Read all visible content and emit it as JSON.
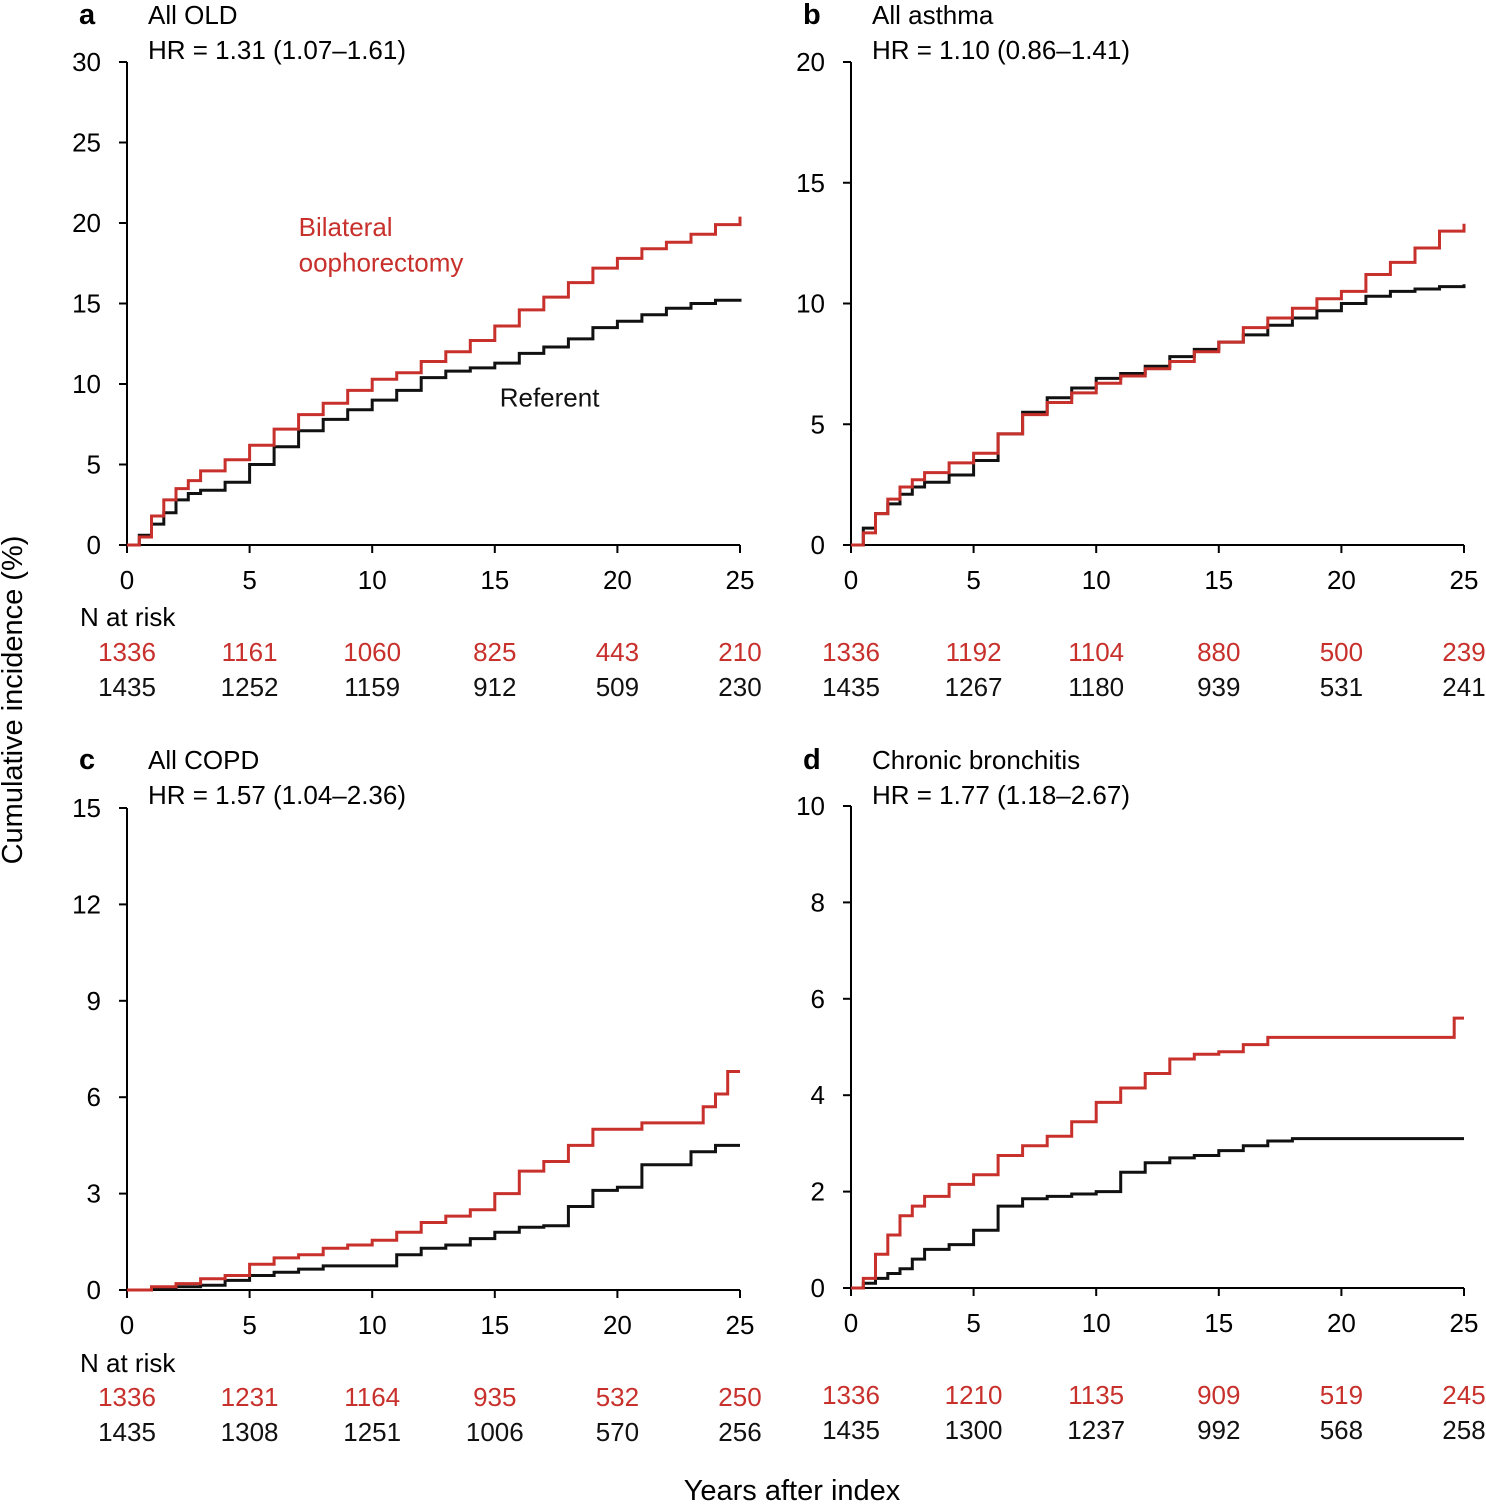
{
  "figure": {
    "ylabel": "Cumulative incidence (%)",
    "xlabel": "Years after index",
    "n_at_risk_label": "N at risk",
    "colors": {
      "oophorectomy": "#c8302c",
      "referent": "#111111",
      "axis": "#000000"
    }
  },
  "chart_data": [
    {
      "type": "line",
      "letter": "a",
      "title": "All OLD",
      "hr": "HR = 1.31 (1.07–1.61)",
      "xlim": [
        0,
        25
      ],
      "ylim": [
        0,
        30
      ],
      "xticks": [
        0,
        5,
        10,
        15,
        20,
        25
      ],
      "yticks": [
        0,
        5,
        10,
        15,
        20,
        25,
        30
      ],
      "annotations": [
        {
          "text": "Bilateral",
          "series": "oophorectomy",
          "at": [
            7.0,
            19.2
          ]
        },
        {
          "text": "oophorectomy",
          "series": "oophorectomy",
          "at": [
            7.0,
            17.0
          ]
        },
        {
          "text": "Referent",
          "series": "referent",
          "at": [
            15.2,
            8.6
          ]
        }
      ],
      "series": [
        {
          "name": "Bilateral oophorectomy",
          "key": "oophorectomy",
          "x": [
            0,
            0.5,
            1,
            1.5,
            2,
            2.5,
            3,
            4,
            5,
            6,
            7,
            8,
            9,
            10,
            11,
            12,
            13,
            14,
            15,
            16,
            17,
            18,
            19,
            20,
            21,
            22,
            23,
            24,
            25
          ],
          "y": [
            0,
            0.5,
            1.8,
            2.8,
            3.5,
            4.0,
            4.6,
            5.3,
            6.2,
            7.2,
            8.1,
            8.8,
            9.6,
            10.3,
            10.7,
            11.4,
            12.0,
            12.7,
            13.6,
            14.6,
            15.4,
            16.3,
            17.2,
            17.8,
            18.4,
            18.8,
            19.3,
            19.9,
            20.4
          ]
        },
        {
          "name": "Referent",
          "key": "referent",
          "x": [
            0,
            0.5,
            1,
            1.5,
            2,
            2.5,
            3,
            4,
            5,
            6,
            7,
            8,
            9,
            10,
            11,
            12,
            13,
            14,
            15,
            16,
            17,
            18,
            19,
            20,
            21,
            22,
            23,
            24,
            25
          ],
          "y": [
            0,
            0.6,
            1.3,
            2.0,
            2.8,
            3.2,
            3.4,
            3.9,
            5.0,
            6.1,
            7.1,
            7.8,
            8.4,
            9.0,
            9.6,
            10.4,
            10.8,
            11.0,
            11.3,
            11.9,
            12.3,
            12.8,
            13.5,
            13.9,
            14.3,
            14.7,
            15.0,
            15.2,
            15.3
          ]
        }
      ],
      "risk": {
        "oophorectomy": [
          "1336",
          "1161",
          "1060",
          "825",
          "443",
          "210"
        ],
        "referent": [
          "1435",
          "1252",
          "1159",
          "912",
          "509",
          "230"
        ]
      }
    },
    {
      "type": "line",
      "letter": "b",
      "title": "All asthma",
      "hr": "HR = 1.10 (0.86–1.41)",
      "xlim": [
        0,
        25
      ],
      "ylim": [
        0,
        20
      ],
      "xticks": [
        0,
        5,
        10,
        15,
        20,
        25
      ],
      "yticks": [
        0,
        5,
        10,
        15,
        20
      ],
      "annotations": [],
      "series": [
        {
          "name": "Bilateral oophorectomy",
          "key": "oophorectomy",
          "x": [
            0,
            0.5,
            1,
            1.5,
            2,
            2.5,
            3,
            4,
            5,
            6,
            7,
            8,
            9,
            10,
            11,
            12,
            13,
            14,
            15,
            16,
            17,
            18,
            19,
            20,
            21,
            22,
            23,
            24,
            25
          ],
          "y": [
            0,
            0.5,
            1.3,
            1.9,
            2.4,
            2.7,
            3.0,
            3.4,
            3.8,
            4.6,
            5.4,
            5.9,
            6.3,
            6.7,
            7.0,
            7.3,
            7.6,
            8.0,
            8.4,
            9.0,
            9.4,
            9.8,
            10.2,
            10.5,
            11.2,
            11.7,
            12.3,
            13.0,
            13.3
          ]
        },
        {
          "name": "Referent",
          "key": "referent",
          "x": [
            0,
            0.5,
            1,
            1.5,
            2,
            2.5,
            3,
            4,
            5,
            6,
            7,
            8,
            9,
            10,
            11,
            12,
            13,
            14,
            15,
            16,
            17,
            18,
            19,
            20,
            21,
            22,
            23,
            24,
            25
          ],
          "y": [
            0,
            0.7,
            1.3,
            1.7,
            2.1,
            2.4,
            2.6,
            2.9,
            3.5,
            4.6,
            5.5,
            6.1,
            6.5,
            6.9,
            7.1,
            7.4,
            7.8,
            8.1,
            8.4,
            8.7,
            9.1,
            9.4,
            9.7,
            10.0,
            10.3,
            10.5,
            10.6,
            10.7,
            10.8
          ]
        }
      ],
      "risk": {
        "oophorectomy": [
          "1336",
          "1192",
          "1104",
          "880",
          "500",
          "239"
        ],
        "referent": [
          "1435",
          "1267",
          "1180",
          "939",
          "531",
          "241"
        ]
      }
    },
    {
      "type": "line",
      "letter": "c",
      "title": "All COPD",
      "hr": "HR = 1.57 (1.04–2.36)",
      "xlim": [
        0,
        25
      ],
      "ylim": [
        0,
        15
      ],
      "xticks": [
        0,
        5,
        10,
        15,
        20,
        25
      ],
      "yticks": [
        0,
        3,
        6,
        9,
        12,
        15
      ],
      "annotations": [],
      "series": [
        {
          "name": "Bilateral oophorectomy",
          "key": "oophorectomy",
          "x": [
            0,
            1,
            2,
            3,
            4,
            5,
            6,
            7,
            8,
            9,
            10,
            11,
            12,
            13,
            14,
            15,
            16,
            17,
            18,
            19,
            20,
            21,
            22,
            23,
            23.5,
            24,
            24.5,
            25
          ],
          "y": [
            0,
            0.1,
            0.2,
            0.35,
            0.45,
            0.8,
            1.0,
            1.1,
            1.3,
            1.4,
            1.55,
            1.8,
            2.1,
            2.3,
            2.5,
            3.0,
            3.7,
            4.0,
            4.5,
            5.0,
            5.0,
            5.2,
            5.2,
            5.2,
            5.7,
            6.1,
            6.8,
            6.8
          ]
        },
        {
          "name": "Referent",
          "key": "referent",
          "x": [
            0,
            1,
            2,
            3,
            4,
            5,
            6,
            7,
            8,
            9,
            10,
            11,
            12,
            13,
            14,
            15,
            16,
            17,
            18,
            19,
            20,
            21,
            22,
            23,
            24,
            25
          ],
          "y": [
            0,
            0.05,
            0.1,
            0.15,
            0.3,
            0.45,
            0.55,
            0.65,
            0.75,
            0.75,
            0.75,
            1.1,
            1.3,
            1.4,
            1.6,
            1.8,
            1.95,
            2.0,
            2.6,
            3.1,
            3.2,
            3.9,
            3.9,
            4.3,
            4.5,
            4.5
          ]
        }
      ],
      "risk": {
        "oophorectomy": [
          "1336",
          "1231",
          "1164",
          "935",
          "532",
          "250"
        ],
        "referent": [
          "1435",
          "1308",
          "1251",
          "1006",
          "570",
          "256"
        ]
      }
    },
    {
      "type": "line",
      "letter": "d",
      "title": "Chronic bronchitis",
      "hr": "HR = 1.77 (1.18–2.67)",
      "xlim": [
        0,
        25
      ],
      "ylim": [
        0,
        10
      ],
      "xticks": [
        0,
        5,
        10,
        15,
        20,
        25
      ],
      "yticks": [
        0,
        2,
        4,
        6,
        8,
        10
      ],
      "annotations": [],
      "series": [
        {
          "name": "Bilateral oophorectomy",
          "key": "oophorectomy",
          "x": [
            0,
            0.5,
            1,
            1.5,
            2,
            2.5,
            3,
            4,
            5,
            6,
            7,
            8,
            9,
            10,
            11,
            12,
            13,
            14,
            15,
            16,
            17,
            18,
            19,
            20,
            21,
            22,
            23,
            24,
            24.6,
            25
          ],
          "y": [
            0,
            0.2,
            0.7,
            1.1,
            1.5,
            1.7,
            1.9,
            2.15,
            2.35,
            2.75,
            2.95,
            3.15,
            3.45,
            3.85,
            4.15,
            4.45,
            4.75,
            4.85,
            4.9,
            5.05,
            5.2,
            5.2,
            5.2,
            5.2,
            5.2,
            5.2,
            5.2,
            5.2,
            5.6,
            5.6
          ]
        },
        {
          "name": "Referent",
          "key": "referent",
          "x": [
            0,
            0.5,
            1,
            1.5,
            2,
            2.5,
            3,
            4,
            5,
            6,
            7,
            8,
            9,
            10,
            11,
            12,
            13,
            14,
            15,
            16,
            17,
            18,
            19,
            20,
            21,
            22,
            23,
            24,
            25
          ],
          "y": [
            0,
            0.1,
            0.2,
            0.3,
            0.4,
            0.6,
            0.8,
            0.9,
            1.2,
            1.7,
            1.85,
            1.9,
            1.95,
            2.0,
            2.4,
            2.6,
            2.7,
            2.75,
            2.85,
            2.95,
            3.05,
            3.1,
            3.1,
            3.1,
            3.1,
            3.1,
            3.1,
            3.1,
            3.1
          ]
        }
      ],
      "risk": {
        "oophorectomy": [
          "1336",
          "1210",
          "1135",
          "909",
          "519",
          "245"
        ],
        "referent": [
          "1435",
          "1300",
          "1237",
          "992",
          "568",
          "258"
        ]
      }
    }
  ]
}
